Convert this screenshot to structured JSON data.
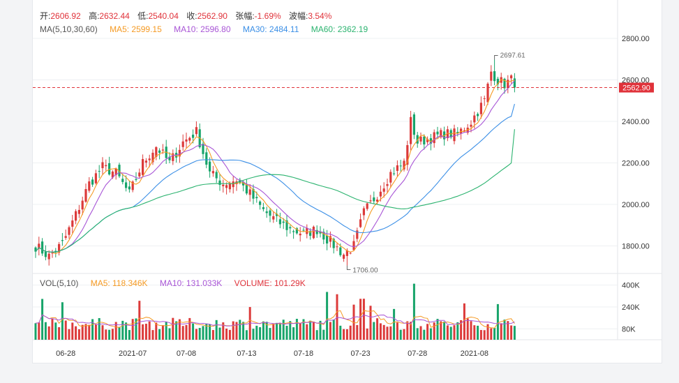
{
  "ohlc_line": {
    "open_label": "开:",
    "open": "2606.92",
    "high_label": "高:",
    "high": "2632.44",
    "low_label": "低:",
    "low": "2540.04",
    "close_label": "收:",
    "close": "2562.90",
    "change_label": "张幅:",
    "change": "-1.69%",
    "amplitude_label": "波幅:",
    "amplitude": "3.54%"
  },
  "ma_line": {
    "title": "MA(5,10,30,60)",
    "ma5": "MA5: 2599.15",
    "ma10": "MA10: 2596.80",
    "ma30": "MA30: 2484.11",
    "ma60": "MA60: 2362.19"
  },
  "vol_line": {
    "title": "VOL(5,10)",
    "ma5": "MA5: 118.346K",
    "ma10": "MA10: 131.033K",
    "volume": "VOLUME: 101.29K"
  },
  "colors": {
    "up": "#dc3a3a",
    "down": "#17a46a",
    "ma5": "#f59a23",
    "ma10": "#a855d6",
    "ma30": "#3b8fe6",
    "ma60": "#2bb36f",
    "grid": "#eef0f3",
    "label_red": "#e0323a"
  },
  "chart_data": [
    {
      "type": "candlestick",
      "title": "",
      "y_ticks": [
        "2600.00",
        "2400.00",
        "2200.00",
        "2000.00",
        "1800.00"
      ],
      "y_tick_values": [
        2600,
        2400,
        2200,
        2000,
        1800
      ],
      "ylim": [
        1650,
        2800
      ],
      "x_ticks": [
        "06-28",
        "2021-07",
        "07-08",
        "07-13",
        "07-18",
        "07-23",
        "07-28",
        "2021-08"
      ],
      "x_tick_index": [
        9,
        29,
        45,
        63,
        80,
        97,
        114,
        131
      ],
      "max_marker": "2697.61",
      "max_value": 2697.61,
      "min_marker": "1706.00",
      "min_value": 1706.0,
      "current_price": "2562.90",
      "current_value": 2562.9,
      "anchors": [
        [
          0,
          1800
        ],
        [
          4,
          1750
        ],
        [
          8,
          1810
        ],
        [
          12,
          1950
        ],
        [
          16,
          2100
        ],
        [
          20,
          2180
        ],
        [
          24,
          2150
        ],
        [
          28,
          2050
        ],
        [
          32,
          2200
        ],
        [
          36,
          2280
        ],
        [
          40,
          2200
        ],
        [
          44,
          2300
        ],
        [
          48,
          2350
        ],
        [
          52,
          2150
        ],
        [
          56,
          2100
        ],
        [
          60,
          2120
        ],
        [
          64,
          2050
        ],
        [
          68,
          1970
        ],
        [
          72,
          1920
        ],
        [
          76,
          1880
        ],
        [
          80,
          1860
        ],
        [
          84,
          1880
        ],
        [
          88,
          1820
        ],
        [
          92,
          1760
        ],
        [
          95,
          1800
        ],
        [
          98,
          1960
        ],
        [
          102,
          2050
        ],
        [
          106,
          2150
        ],
        [
          110,
          2200
        ],
        [
          112,
          2400
        ],
        [
          114,
          2300
        ],
        [
          118,
          2320
        ],
        [
          122,
          2340
        ],
        [
          126,
          2340
        ],
        [
          130,
          2400
        ],
        [
          134,
          2500
        ],
        [
          136,
          2640
        ],
        [
          138,
          2600
        ],
        [
          140,
          2580
        ],
        [
          142,
          2600
        ],
        [
          143,
          2562.9
        ]
      ],
      "last_candle": {
        "open": 2606.92,
        "high": 2632.44,
        "low": 2540.04,
        "close": 2562.9
      },
      "ma_last": {
        "ma5": 2599.15,
        "ma10": 2596.8,
        "ma30": 2484.11,
        "ma60": 2362.19
      }
    },
    {
      "type": "bar",
      "title": "",
      "y_ticks": [
        "400K",
        "240K",
        "80K"
      ],
      "y_tick_values": [
        400,
        240,
        80
      ],
      "ylim": [
        0,
        440
      ],
      "unit": "K",
      "volume_last": 101.29,
      "ma5_last": 118.346,
      "ma10_last": 131.033
    }
  ]
}
